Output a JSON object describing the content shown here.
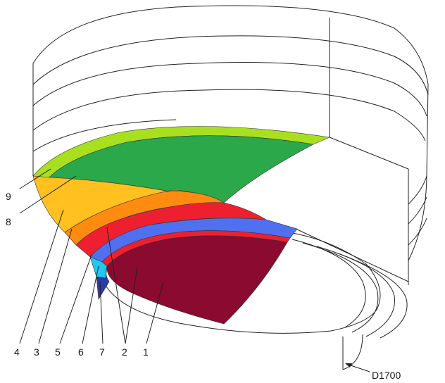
{
  "diagram": {
    "labels": {
      "l9": "9",
      "l8": "8",
      "l4": "4",
      "l3": "3",
      "l5": "5",
      "l6": "6",
      "l7": "7",
      "l2": "2",
      "l1": "1",
      "dimension": "D1700"
    },
    "colors": {
      "layer_9": "#a8e020",
      "layer_8": "#2aa84a",
      "layer_4": "#ffc020",
      "layer_3": "#ff8c10",
      "layer_2": "#ee2030",
      "layer_blue": "#5070f0",
      "layer_6": "#20c8f0",
      "layer_7": "#2a3aa8",
      "layer_1": "#8a0a30"
    }
  }
}
